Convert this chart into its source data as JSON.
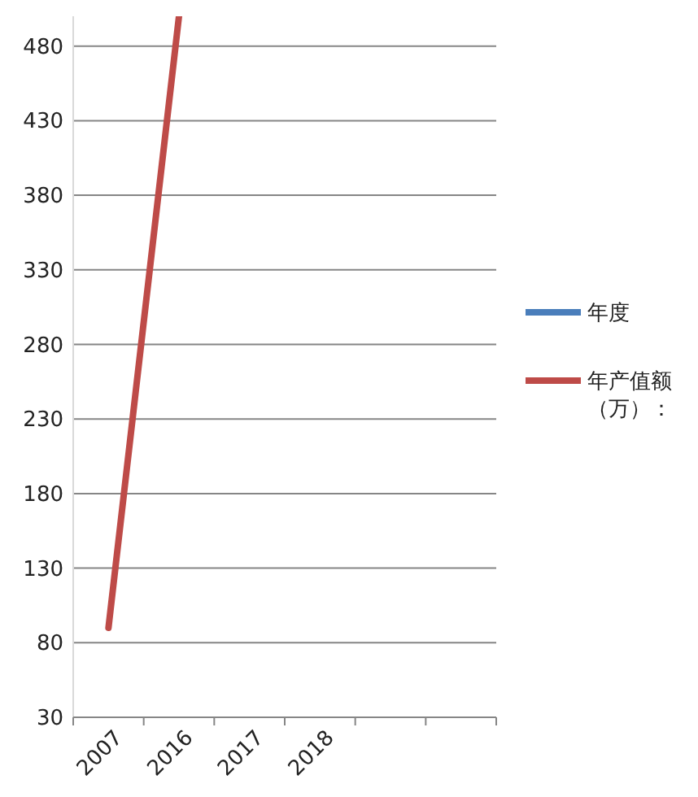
{
  "chart_data": {
    "type": "line",
    "categories": [
      "2007",
      "2016",
      "2017",
      "2018",
      null,
      null
    ],
    "series": [
      {
        "name": "年度",
        "color": "#4a7ebb",
        "values": [
          null,
          null,
          null,
          null,
          null,
          null
        ]
      },
      {
        "name": "年产值额（万）：",
        "color": "#be4b48",
        "values": [
          90,
          500,
          null,
          null,
          null,
          null
        ]
      }
    ],
    "ylim": [
      30,
      500
    ],
    "yticks": [
      30,
      80,
      130,
      180,
      230,
      280,
      330,
      380,
      430,
      480
    ],
    "grid": "y",
    "legend": "right",
    "marker": "none"
  }
}
